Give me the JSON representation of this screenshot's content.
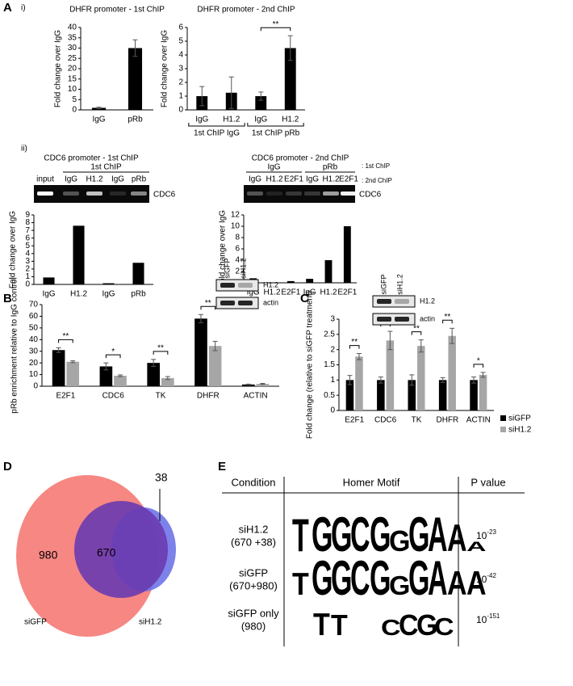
{
  "panel_labels": [
    "A",
    "i)",
    "ii)",
    "B",
    "C",
    "D",
    "E"
  ],
  "chart_data": [
    {
      "type": "bar",
      "title": "DHFR promoter - 1st ChIP",
      "ylabel": "Fold change over IgG",
      "categories": [
        "IgG",
        "pRb"
      ],
      "values": [
        1,
        30
      ],
      "errors": [
        0.3,
        4
      ],
      "color": "#000000",
      "ylim": [
        0,
        40
      ],
      "yticks": [
        0,
        5,
        10,
        15,
        20,
        25,
        30,
        35,
        40
      ]
    },
    {
      "type": "bar",
      "title": "DHFR promoter - 2nd ChIP",
      "ylabel": "Fold change over IgG",
      "categories": [
        "IgG",
        "H1.2",
        "IgG",
        "H1.2"
      ],
      "values": [
        1,
        1.25,
        1,
        4.5
      ],
      "errors": [
        0.7,
        1.15,
        0.3,
        0.9
      ],
      "color": "#000000",
      "ylim": [
        0,
        6
      ],
      "yticks": [
        0,
        1,
        2,
        3,
        4,
        5,
        6
      ],
      "groups": [
        "1st ChIP IgG",
        "1st ChIP pRb"
      ],
      "significance": [
        "**"
      ]
    },
    {
      "type": "bar",
      "ylabel": "Fold change over IgG",
      "categories": [
        "IgG",
        "H1.2",
        "IgG",
        "pRb"
      ],
      "values": [
        0.9,
        7.6,
        0.15,
        2.8
      ],
      "color": "#000000",
      "ylim": [
        0,
        9
      ],
      "yticks": [
        0,
        1,
        2,
        3,
        4,
        5,
        6,
        7,
        8,
        9
      ]
    },
    {
      "type": "bar",
      "ylabel": "Fold change over IgG",
      "categories": [
        "IgG",
        "H1.2",
        "E2F1",
        "IgG",
        "H1.2",
        "E2F1"
      ],
      "values": [
        0.8,
        0,
        0.3,
        0.7,
        4,
        10
      ],
      "color": "#000000",
      "ylim": [
        0,
        12
      ],
      "yticks": [
        0,
        2,
        4,
        6,
        8,
        10,
        12
      ]
    },
    {
      "type": "bar",
      "ylabel": "pRb enrichment relative to IgG control",
      "categories": [
        "E2F1",
        "CDC6",
        "TK",
        "DHFR",
        "ACTIN"
      ],
      "series": [
        {
          "color": "#000000",
          "values": [
            31,
            17,
            20,
            58,
            1.5
          ],
          "errors": [
            2,
            3,
            3,
            3.5,
            0.3
          ]
        },
        {
          "color": "#a6a6a6",
          "values": [
            21,
            9,
            7,
            34.5,
            2
          ],
          "errors": [
            0.8,
            0.7,
            1.3,
            4,
            0.4
          ]
        }
      ],
      "ylim": [
        0,
        70
      ],
      "yticks": [
        0,
        10,
        20,
        30,
        40,
        50,
        60,
        70
      ],
      "significance": [
        "**",
        "*",
        "**",
        "**"
      ]
    },
    {
      "type": "bar",
      "ylabel": "Fold change (relative to siGFP treatment)",
      "categories": [
        "E2F1",
        "CDC6",
        "TK",
        "DHFR",
        "ACTIN"
      ],
      "series": [
        {
          "name": "siGFP",
          "color": "#000000",
          "values": [
            1,
            1,
            1,
            1,
            1
          ],
          "errors": [
            0.15,
            0.1,
            0.17,
            0.08,
            0.1
          ]
        },
        {
          "name": "siH1.2",
          "color": "#a6a6a6",
          "values": [
            1.77,
            2.3,
            2.12,
            2.45,
            1.17
          ],
          "errors": [
            0.1,
            0.3,
            0.2,
            0.25,
            0.08
          ]
        }
      ],
      "ylim": [
        0,
        3
      ],
      "yticks": [
        0,
        0.5,
        1,
        1.5,
        2,
        2.5,
        3
      ],
      "significance": [
        "**",
        "**",
        "**",
        "**",
        "*"
      ],
      "legend": "right"
    }
  ],
  "gels": [
    {
      "title": "CDC6 promoter - 1st ChIP",
      "groups": [
        "1st ChIP"
      ],
      "lanes": [
        "input",
        "IgG",
        "H1.2",
        "IgG",
        "pRb"
      ],
      "band": "CDC6"
    },
    {
      "title": "CDC6 promoter - 2nd ChIP",
      "groups": [
        "IgG",
        "pRb"
      ],
      "lanes": [
        "IgG",
        "H1.2",
        "E2F1",
        "IgG",
        "H1.2",
        "E2F1"
      ],
      "band": "CDC6",
      "keys": [
        ": 1st ChIP",
        ": 2nd ChIP"
      ]
    }
  ],
  "blots": [
    {
      "lanes": [
        "siGFP",
        "siH1.2"
      ],
      "rows": [
        "H1.2",
        "actin"
      ]
    },
    {
      "lanes": [
        "siGFP",
        "siH1.2"
      ],
      "rows": [
        "H1.2",
        "actin"
      ]
    }
  ],
  "venn": {
    "sets": [
      "siGFP",
      "siH1.2"
    ],
    "counts": [
      980,
      670,
      38
    ]
  },
  "motif_table": {
    "headers": [
      "Condition",
      "Homer Motif",
      "P value"
    ],
    "rows": [
      {
        "condition": [
          "siH1.2",
          "(670 +38)"
        ],
        "motif": [
          "T",
          "G",
          "G",
          "C",
          "G",
          "G",
          "G",
          "A",
          "A",
          "A"
        ],
        "p_base": "10",
        "p_exp": "-23"
      },
      {
        "condition": [
          "siGFP",
          "(670+980)"
        ],
        "motif": [
          "T",
          "G",
          "G",
          "C",
          "G",
          "G",
          "G",
          "A",
          "A",
          "A"
        ],
        "p_base": "10",
        "p_exp": "-42"
      },
      {
        "condition": [
          "siGFP only",
          "(980)"
        ],
        "motif": [
          "T",
          "T",
          "C",
          "C",
          "G",
          "C"
        ],
        "p_base": "10",
        "p_exp": "-151"
      }
    ]
  }
}
